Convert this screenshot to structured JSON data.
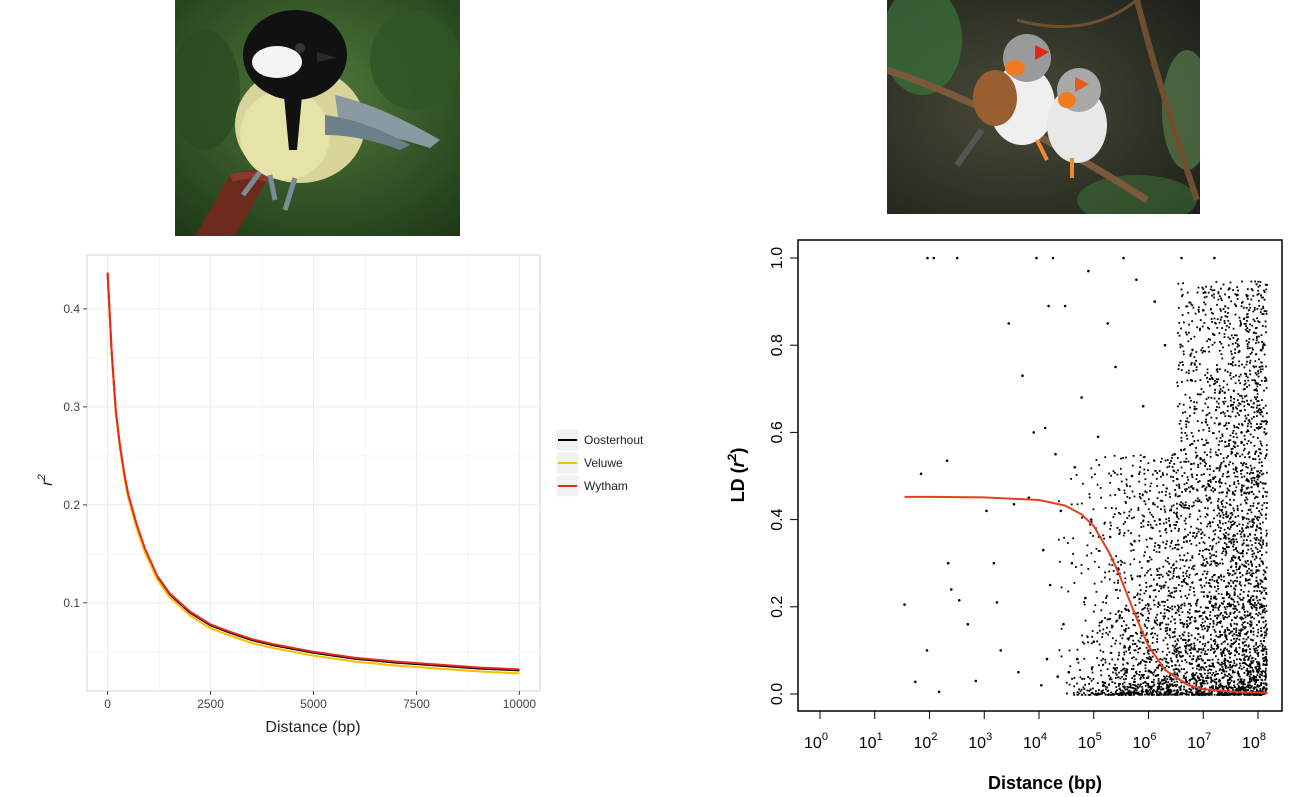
{
  "photos": [
    {
      "subject": "great tit perched on a wooden post"
    },
    {
      "subject": "pair of zebra finches on a branch"
    }
  ],
  "chart_data": [
    {
      "type": "line",
      "xlabel": "Distance (bp)",
      "ylabel": "r",
      "ylabel_sup": "2",
      "xlim": [
        -500,
        10500
      ],
      "ylim": [
        0.01,
        0.455
      ],
      "xticks": [
        0,
        2500,
        5000,
        7500,
        10000
      ],
      "xtick_labels": [
        "0",
        "2500",
        "5000",
        "7500",
        "10000"
      ],
      "yticks": [
        0.1,
        0.2,
        0.3,
        0.4
      ],
      "ytick_labels": [
        "0.1",
        "0.2",
        "0.3",
        "0.4"
      ],
      "grid": true,
      "legend_position": "right",
      "x": [
        0,
        100,
        200,
        300,
        400,
        500,
        700,
        900,
        1200,
        1500,
        2000,
        2500,
        3000,
        3500,
        4000,
        5000,
        6000,
        7000,
        8000,
        9000,
        10000
      ],
      "series": [
        {
          "name": "Oosterhout",
          "color": "#000000",
          "values": [
            0.436,
            0.355,
            0.295,
            0.26,
            0.232,
            0.21,
            0.18,
            0.155,
            0.127,
            0.109,
            0.09,
            0.077,
            0.069,
            0.062,
            0.057,
            0.049,
            0.043,
            0.039,
            0.036,
            0.033,
            0.031
          ]
        },
        {
          "name": "Veluwe",
          "color": "#f5c000",
          "values": [
            0.436,
            0.353,
            0.293,
            0.258,
            0.229,
            0.207,
            0.177,
            0.152,
            0.124,
            0.106,
            0.087,
            0.074,
            0.066,
            0.059,
            0.054,
            0.046,
            0.04,
            0.036,
            0.033,
            0.03,
            0.028
          ]
        },
        {
          "name": "Wytham",
          "color": "#e8281e",
          "values": [
            0.437,
            0.356,
            0.296,
            0.261,
            0.233,
            0.211,
            0.181,
            0.156,
            0.128,
            0.11,
            0.091,
            0.078,
            0.07,
            0.063,
            0.058,
            0.05,
            0.044,
            0.04,
            0.037,
            0.034,
            0.032
          ]
        }
      ]
    },
    {
      "type": "scatter",
      "xlabel": "Distance (bp)",
      "ylabel": "LD (",
      "ylabel_var": "r",
      "ylabel_sup": "2",
      "ylabel_close": ")",
      "x_scale": "log10",
      "xlim": [
        1,
        316227766
      ],
      "ylim": [
        0,
        1
      ],
      "xtick_values": [
        1,
        10,
        100,
        1000,
        10000,
        100000,
        1000000,
        10000000,
        100000000
      ],
      "xtick_labels": [
        {
          "base": "10",
          "exp": "0"
        },
        {
          "base": "10",
          "exp": "1"
        },
        {
          "base": "10",
          "exp": "2"
        },
        {
          "base": "10",
          "exp": "3"
        },
        {
          "base": "10",
          "exp": "4"
        },
        {
          "base": "10",
          "exp": "5"
        },
        {
          "base": "10",
          "exp": "6"
        },
        {
          "base": "10",
          "exp": "7"
        },
        {
          "base": "10",
          "exp": "8"
        }
      ],
      "yticks": [
        0,
        0.2,
        0.4,
        0.6,
        0.8,
        1
      ],
      "ytick_labels": [
        "0.0",
        "0.2",
        "0.4",
        "0.6",
        "0.8",
        "1.0"
      ],
      "grid": false,
      "point_color": "#000000",
      "points": [
        [
          35,
          0.205
        ],
        [
          55,
          0.028
        ],
        [
          70,
          0.505
        ],
        [
          90,
          0.1
        ],
        [
          92,
          1.0
        ],
        [
          120,
          1.0
        ],
        [
          150,
          0.005
        ],
        [
          210,
          0.535
        ],
        [
          220,
          0.3
        ],
        [
          250,
          0.24
        ],
        [
          320,
          1.0
        ],
        [
          350,
          0.215
        ],
        [
          500,
          0.16
        ],
        [
          700,
          0.03
        ],
        [
          1100,
          0.42
        ],
        [
          1500,
          0.3
        ],
        [
          1700,
          0.21
        ],
        [
          2000,
          0.1
        ],
        [
          2800,
          0.85
        ],
        [
          3500,
          0.435
        ],
        [
          4200,
          0.05
        ],
        [
          5000,
          0.73
        ],
        [
          6500,
          0.45
        ],
        [
          8000,
          0.6
        ],
        [
          9000,
          1.0
        ],
        [
          11000,
          0.02
        ],
        [
          12000,
          0.33
        ],
        [
          13000,
          0.61
        ],
        [
          14000,
          0.08
        ],
        [
          15000,
          0.89
        ],
        [
          16000,
          0.25
        ],
        [
          18000,
          1.0
        ],
        [
          20000,
          0.55
        ],
        [
          22000,
          0.04
        ],
        [
          25000,
          0.42
        ],
        [
          28000,
          0.16
        ],
        [
          30000,
          0.89
        ],
        [
          35000,
          0.05
        ],
        [
          40000,
          0.3
        ],
        [
          45000,
          0.52
        ],
        [
          50000,
          0.08
        ],
        [
          60000,
          0.68
        ],
        [
          70000,
          0.22
        ],
        [
          80000,
          0.97
        ],
        [
          90000,
          0.4
        ],
        [
          100000,
          0.12
        ],
        [
          120000,
          0.59
        ],
        [
          150000,
          0.02
        ],
        [
          180000,
          0.85
        ],
        [
          200000,
          0.36
        ],
        [
          250000,
          0.75
        ],
        [
          300000,
          0.18
        ],
        [
          350000,
          1.0
        ],
        [
          400000,
          0.05
        ],
        [
          500000,
          0.5
        ],
        [
          600000,
          0.95
        ],
        [
          700000,
          0.27
        ],
        [
          800000,
          0.66
        ],
        [
          1000000,
          0.1
        ],
        [
          1300000,
          0.9
        ],
        [
          1600000,
          0.4
        ],
        [
          2000000,
          0.8
        ],
        [
          2500000,
          0.02
        ],
        [
          3000000,
          0.55
        ],
        [
          4000000,
          1.0
        ],
        [
          5000000,
          0.35
        ],
        [
          6000000,
          0.72
        ],
        [
          8000000,
          0.15
        ],
        [
          10000000,
          0.88
        ],
        [
          13000000,
          0.45
        ],
        [
          16000000,
          1.0
        ],
        [
          20000000,
          0.62
        ],
        [
          25000000,
          0.08
        ],
        [
          30000000,
          0.93
        ],
        [
          40000000,
          0.3
        ],
        [
          50000000,
          0.6
        ],
        [
          65000000,
          0.18
        ],
        [
          80000000,
          0.4
        ],
        [
          100000000,
          0.05
        ],
        [
          120000000,
          0.2
        ],
        [
          140000000,
          0.01
        ]
      ],
      "fit_line": {
        "color": "#e8401c",
        "x": [
          35,
          100,
          1000,
          10000,
          30000,
          60000,
          100000,
          200000,
          300000,
          500000,
          700000,
          1000000,
          2000000,
          5000000,
          10000000,
          50000000,
          150000000
        ],
        "values": [
          0.452,
          0.452,
          0.451,
          0.445,
          0.432,
          0.412,
          0.385,
          0.32,
          0.27,
          0.2,
          0.155,
          0.11,
          0.055,
          0.022,
          0.011,
          0.004,
          0.003
        ]
      }
    }
  ]
}
